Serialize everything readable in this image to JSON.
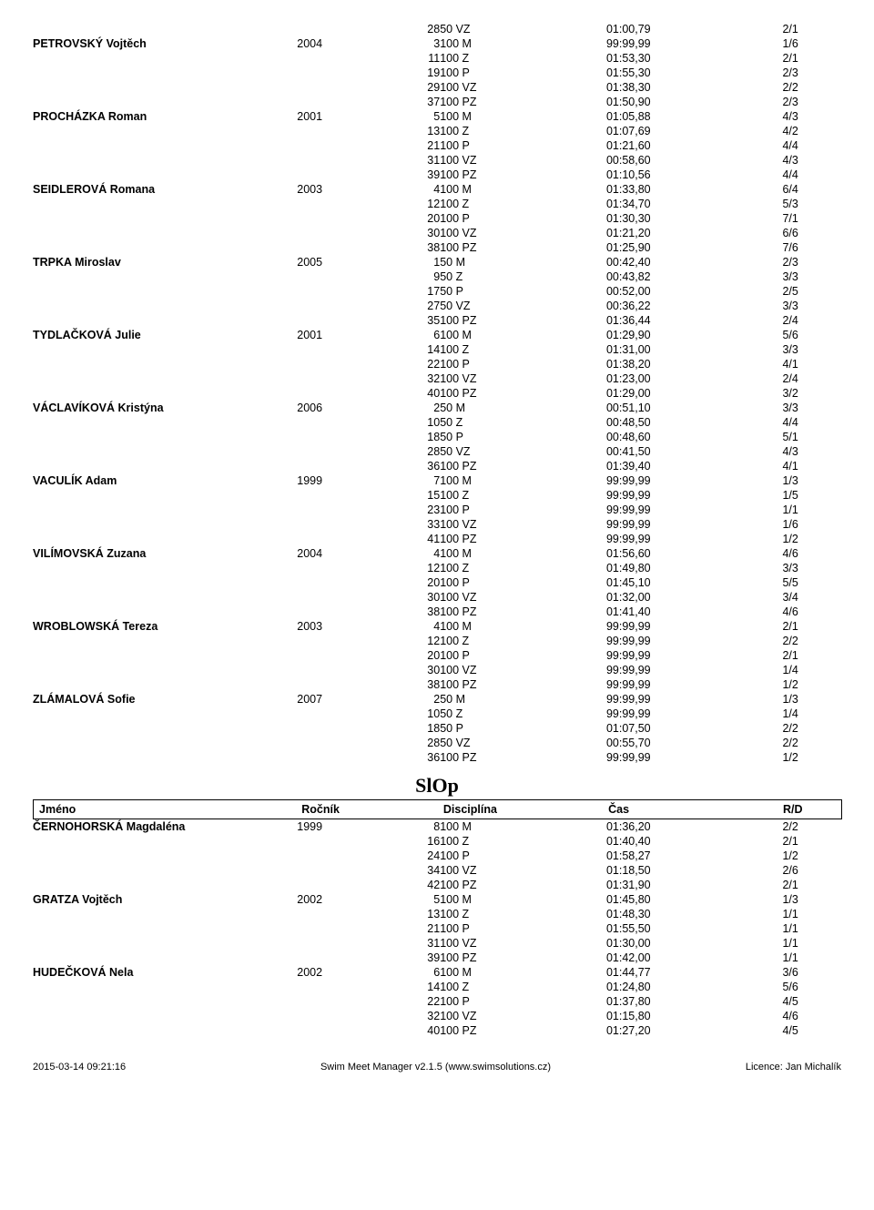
{
  "header_labels": {
    "name": "Jméno",
    "year": "Ročník",
    "discipline": "Disciplína",
    "time": "Čas",
    "rd": "R/D"
  },
  "section2_title": "SlOp",
  "athletes1": [
    {
      "name": "",
      "year": "",
      "results": [
        {
          "n": "28",
          "d": "50 VZ",
          "t": "01:00,79",
          "rd": "2/1"
        }
      ]
    },
    {
      "name": "PETROVSKÝ Vojtěch",
      "year": "2004",
      "results": [
        {
          "n": "3",
          "d": "100 M",
          "t": "99:99,99",
          "rd": "1/6"
        },
        {
          "n": "11",
          "d": "100 Z",
          "t": "01:53,30",
          "rd": "2/1"
        },
        {
          "n": "19",
          "d": "100 P",
          "t": "01:55,30",
          "rd": "2/3"
        },
        {
          "n": "29",
          "d": "100 VZ",
          "t": "01:38,30",
          "rd": "2/2"
        },
        {
          "n": "37",
          "d": "100 PZ",
          "t": "01:50,90",
          "rd": "2/3"
        }
      ]
    },
    {
      "name": "PROCHÁZKA Roman",
      "year": "2001",
      "results": [
        {
          "n": "5",
          "d": "100 M",
          "t": "01:05,88",
          "rd": "4/3"
        },
        {
          "n": "13",
          "d": "100 Z",
          "t": "01:07,69",
          "rd": "4/2"
        },
        {
          "n": "21",
          "d": "100 P",
          "t": "01:21,60",
          "rd": "4/4"
        },
        {
          "n": "31",
          "d": "100 VZ",
          "t": "00:58,60",
          "rd": "4/3"
        },
        {
          "n": "39",
          "d": "100 PZ",
          "t": "01:10,56",
          "rd": "4/4"
        }
      ]
    },
    {
      "name": "SEIDLEROVÁ Romana",
      "year": "2003",
      "results": [
        {
          "n": "4",
          "d": "100 M",
          "t": "01:33,80",
          "rd": "6/4"
        },
        {
          "n": "12",
          "d": "100 Z",
          "t": "01:34,70",
          "rd": "5/3"
        },
        {
          "n": "20",
          "d": "100 P",
          "t": "01:30,30",
          "rd": "7/1"
        },
        {
          "n": "30",
          "d": "100 VZ",
          "t": "01:21,20",
          "rd": "6/6"
        },
        {
          "n": "38",
          "d": "100 PZ",
          "t": "01:25,90",
          "rd": "7/6"
        }
      ]
    },
    {
      "name": "TRPKA Miroslav",
      "year": "2005",
      "results": [
        {
          "n": "1",
          "d": "50 M",
          "t": "00:42,40",
          "rd": "2/3"
        },
        {
          "n": "9",
          "d": "50 Z",
          "t": "00:43,82",
          "rd": "3/3"
        },
        {
          "n": "17",
          "d": "50 P",
          "t": "00:52,00",
          "rd": "2/5"
        },
        {
          "n": "27",
          "d": "50 VZ",
          "t": "00:36,22",
          "rd": "3/3"
        },
        {
          "n": "35",
          "d": "100 PZ",
          "t": "01:36,44",
          "rd": "2/4"
        }
      ]
    },
    {
      "name": "TYDLAČKOVÁ Julie",
      "year": "2001",
      "results": [
        {
          "n": "6",
          "d": "100 M",
          "t": "01:29,90",
          "rd": "5/6"
        },
        {
          "n": "14",
          "d": "100 Z",
          "t": "01:31,00",
          "rd": "3/3"
        },
        {
          "n": "22",
          "d": "100 P",
          "t": "01:38,20",
          "rd": "4/1"
        },
        {
          "n": "32",
          "d": "100 VZ",
          "t": "01:23,00",
          "rd": "2/4"
        },
        {
          "n": "40",
          "d": "100 PZ",
          "t": "01:29,00",
          "rd": "3/2"
        }
      ]
    },
    {
      "name": "VÁCLAVÍKOVÁ Kristýna",
      "year": "2006",
      "results": [
        {
          "n": "2",
          "d": "50 M",
          "t": "00:51,10",
          "rd": "3/3"
        },
        {
          "n": "10",
          "d": "50 Z",
          "t": "00:48,50",
          "rd": "4/4"
        },
        {
          "n": "18",
          "d": "50 P",
          "t": "00:48,60",
          "rd": "5/1"
        },
        {
          "n": "28",
          "d": "50 VZ",
          "t": "00:41,50",
          "rd": "4/3"
        },
        {
          "n": "36",
          "d": "100 PZ",
          "t": "01:39,40",
          "rd": "4/1"
        }
      ]
    },
    {
      "name": "VACULÍK Adam",
      "year": "1999",
      "results": [
        {
          "n": "7",
          "d": "100 M",
          "t": "99:99,99",
          "rd": "1/3"
        },
        {
          "n": "15",
          "d": "100 Z",
          "t": "99:99,99",
          "rd": "1/5"
        },
        {
          "n": "23",
          "d": "100 P",
          "t": "99:99,99",
          "rd": "1/1"
        },
        {
          "n": "33",
          "d": "100 VZ",
          "t": "99:99,99",
          "rd": "1/6"
        },
        {
          "n": "41",
          "d": "100 PZ",
          "t": "99:99,99",
          "rd": "1/2"
        }
      ]
    },
    {
      "name": "VILÍMOVSKÁ Zuzana",
      "year": "2004",
      "results": [
        {
          "n": "4",
          "d": "100 M",
          "t": "01:56,60",
          "rd": "4/6"
        },
        {
          "n": "12",
          "d": "100 Z",
          "t": "01:49,80",
          "rd": "3/3"
        },
        {
          "n": "20",
          "d": "100 P",
          "t": "01:45,10",
          "rd": "5/5"
        },
        {
          "n": "30",
          "d": "100 VZ",
          "t": "01:32,00",
          "rd": "3/4"
        },
        {
          "n": "38",
          "d": "100 PZ",
          "t": "01:41,40",
          "rd": "4/6"
        }
      ]
    },
    {
      "name": "WROBLOWSKÁ Tereza",
      "year": "2003",
      "results": [
        {
          "n": "4",
          "d": "100 M",
          "t": "99:99,99",
          "rd": "2/1"
        },
        {
          "n": "12",
          "d": "100 Z",
          "t": "99:99,99",
          "rd": "2/2"
        },
        {
          "n": "20",
          "d": "100 P",
          "t": "99:99,99",
          "rd": "2/1"
        },
        {
          "n": "30",
          "d": "100 VZ",
          "t": "99:99,99",
          "rd": "1/4"
        },
        {
          "n": "38",
          "d": "100 PZ",
          "t": "99:99,99",
          "rd": "1/2"
        }
      ]
    },
    {
      "name": "ZLÁMALOVÁ Sofie",
      "year": "2007",
      "results": [
        {
          "n": "2",
          "d": "50 M",
          "t": "99:99,99",
          "rd": "1/3"
        },
        {
          "n": "10",
          "d": "50 Z",
          "t": "99:99,99",
          "rd": "1/4"
        },
        {
          "n": "18",
          "d": "50 P",
          "t": "01:07,50",
          "rd": "2/2"
        },
        {
          "n": "28",
          "d": "50 VZ",
          "t": "00:55,70",
          "rd": "2/2"
        },
        {
          "n": "36",
          "d": "100 PZ",
          "t": "99:99,99",
          "rd": "1/2"
        }
      ]
    }
  ],
  "athletes2": [
    {
      "name": "ČERNOHORSKÁ Magdaléna",
      "year": "1999",
      "results": [
        {
          "n": "8",
          "d": "100 M",
          "t": "01:36,20",
          "rd": "2/2"
        },
        {
          "n": "16",
          "d": "100 Z",
          "t": "01:40,40",
          "rd": "2/1"
        },
        {
          "n": "24",
          "d": "100 P",
          "t": "01:58,27",
          "rd": "1/2"
        },
        {
          "n": "34",
          "d": "100 VZ",
          "t": "01:18,50",
          "rd": "2/6"
        },
        {
          "n": "42",
          "d": "100 PZ",
          "t": "01:31,90",
          "rd": "2/1"
        }
      ]
    },
    {
      "name": "GRATZA Vojtěch",
      "year": "2002",
      "results": [
        {
          "n": "5",
          "d": "100 M",
          "t": "01:45,80",
          "rd": "1/3"
        },
        {
          "n": "13",
          "d": "100 Z",
          "t": "01:48,30",
          "rd": "1/1"
        },
        {
          "n": "21",
          "d": "100 P",
          "t": "01:55,50",
          "rd": "1/1"
        },
        {
          "n": "31",
          "d": "100 VZ",
          "t": "01:30,00",
          "rd": "1/1"
        },
        {
          "n": "39",
          "d": "100 PZ",
          "t": "01:42,00",
          "rd": "1/1"
        }
      ]
    },
    {
      "name": "HUDEČKOVÁ Nela",
      "year": "2002",
      "results": [
        {
          "n": "6",
          "d": "100 M",
          "t": "01:44,77",
          "rd": "3/6"
        },
        {
          "n": "14",
          "d": "100 Z",
          "t": "01:24,80",
          "rd": "5/6"
        },
        {
          "n": "22",
          "d": "100 P",
          "t": "01:37,80",
          "rd": "4/5"
        },
        {
          "n": "32",
          "d": "100 VZ",
          "t": "01:15,80",
          "rd": "4/6"
        },
        {
          "n": "40",
          "d": "100 PZ",
          "t": "01:27,20",
          "rd": "4/5"
        }
      ]
    }
  ],
  "footer": {
    "left": "2015-03-14 09:21:16",
    "center": "Swim Meet Manager v2.1.5 (www.swimsolutions.cz)",
    "right": "Licence: Jan Michalík"
  }
}
